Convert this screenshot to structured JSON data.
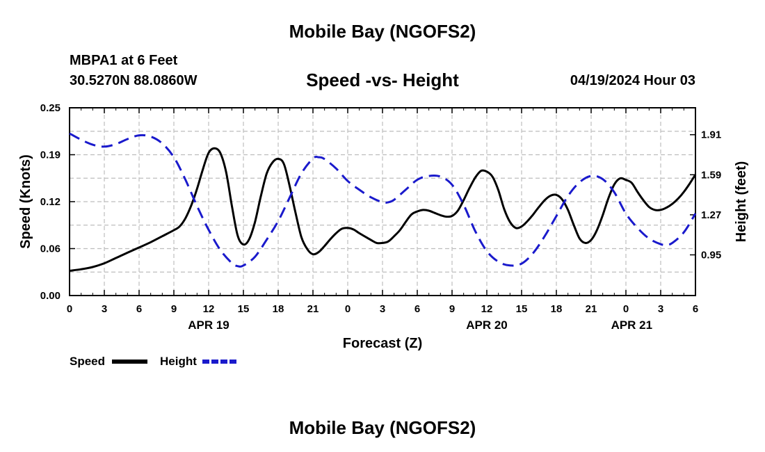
{
  "header": {
    "main_title": "Mobile Bay (NGOFS2)",
    "station_line1": "MBPA1 at 6 Feet",
    "station_line2": "30.5270N  88.0860W",
    "chart_date": "04/19/2024 Hour 03"
  },
  "footer": {
    "repeat_title": "Mobile Bay (NGOFS2)"
  },
  "colors": {
    "speed": "#000000",
    "height": "#1a1acc",
    "grid": "#bdbdbd"
  },
  "chart_data": {
    "type": "line",
    "title": "Speed -vs- Height",
    "xlabel": "Forecast (Z)",
    "ylabel_left": "Speed (Knots)",
    "ylabel_right": "Height (feet)",
    "x_range_hours": [
      0,
      54
    ],
    "ylim_left": [
      0.0,
      0.25
    ],
    "ylim_right": [
      0.625,
      2.125
    ],
    "left_ticks": [
      {
        "value": 0.0,
        "label": "0.00"
      },
      {
        "value": 0.0625,
        "label": "0.06"
      },
      {
        "value": 0.125,
        "label": "0.12"
      },
      {
        "value": 0.1875,
        "label": "0.19"
      },
      {
        "value": 0.25,
        "label": "0.25"
      }
    ],
    "right_ticks": [
      {
        "value": 0.95,
        "label": "0.95"
      },
      {
        "value": 1.27,
        "label": "1.27"
      },
      {
        "value": 1.59,
        "label": "1.59"
      },
      {
        "value": 1.91,
        "label": "1.91"
      }
    ],
    "x_ticks": [
      {
        "hour": 0,
        "label": "0"
      },
      {
        "hour": 3,
        "label": "3"
      },
      {
        "hour": 6,
        "label": "6"
      },
      {
        "hour": 9,
        "label": "9"
      },
      {
        "hour": 12,
        "label": "12"
      },
      {
        "hour": 15,
        "label": "15"
      },
      {
        "hour": 18,
        "label": "18"
      },
      {
        "hour": 21,
        "label": "21"
      },
      {
        "hour": 24,
        "label": "0"
      },
      {
        "hour": 27,
        "label": "3"
      },
      {
        "hour": 30,
        "label": "6"
      },
      {
        "hour": 33,
        "label": "9"
      },
      {
        "hour": 36,
        "label": "12"
      },
      {
        "hour": 39,
        "label": "15"
      },
      {
        "hour": 42,
        "label": "18"
      },
      {
        "hour": 45,
        "label": "21"
      },
      {
        "hour": 48,
        "label": "0"
      },
      {
        "hour": 51,
        "label": "3"
      },
      {
        "hour": 54,
        "label": "6"
      }
    ],
    "date_labels": [
      {
        "hour": 12,
        "label": "APR 19"
      },
      {
        "hour": 36,
        "label": "APR 20"
      },
      {
        "hour": 48.5,
        "label": "APR 21"
      }
    ],
    "series": [
      {
        "name": "Speed",
        "axis": "left",
        "style": "solid",
        "points": [
          [
            0,
            0.033
          ],
          [
            1,
            0.035
          ],
          [
            2,
            0.038
          ],
          [
            3,
            0.043
          ],
          [
            4,
            0.05
          ],
          [
            5,
            0.057
          ],
          [
            6,
            0.064
          ],
          [
            7,
            0.071
          ],
          [
            8,
            0.079
          ],
          [
            9,
            0.087
          ],
          [
            9.5,
            0.092
          ],
          [
            10,
            0.103
          ],
          [
            10.5,
            0.12
          ],
          [
            11,
            0.142
          ],
          [
            11.5,
            0.168
          ],
          [
            12,
            0.19
          ],
          [
            12.5,
            0.196
          ],
          [
            13,
            0.19
          ],
          [
            13.5,
            0.165
          ],
          [
            14,
            0.12
          ],
          [
            14.5,
            0.08
          ],
          [
            15,
            0.068
          ],
          [
            15.5,
            0.075
          ],
          [
            16,
            0.098
          ],
          [
            16.5,
            0.132
          ],
          [
            17,
            0.162
          ],
          [
            17.5,
            0.177
          ],
          [
            18,
            0.182
          ],
          [
            18.5,
            0.175
          ],
          [
            19,
            0.145
          ],
          [
            19.5,
            0.11
          ],
          [
            20,
            0.078
          ],
          [
            20.5,
            0.062
          ],
          [
            21,
            0.055
          ],
          [
            21.5,
            0.058
          ],
          [
            22,
            0.066
          ],
          [
            22.5,
            0.075
          ],
          [
            23,
            0.083
          ],
          [
            23.5,
            0.089
          ],
          [
            24,
            0.09
          ],
          [
            24.5,
            0.088
          ],
          [
            25,
            0.083
          ],
          [
            26,
            0.074
          ],
          [
            26.5,
            0.07
          ],
          [
            27,
            0.07
          ],
          [
            27.5,
            0.072
          ],
          [
            28,
            0.079
          ],
          [
            28.5,
            0.087
          ],
          [
            29,
            0.098
          ],
          [
            29.5,
            0.108
          ],
          [
            30,
            0.112
          ],
          [
            30.5,
            0.114
          ],
          [
            31,
            0.113
          ],
          [
            31.5,
            0.11
          ],
          [
            32,
            0.107
          ],
          [
            32.5,
            0.105
          ],
          [
            33,
            0.106
          ],
          [
            33.5,
            0.113
          ],
          [
            34,
            0.127
          ],
          [
            34.5,
            0.143
          ],
          [
            35,
            0.157
          ],
          [
            35.5,
            0.166
          ],
          [
            36,
            0.165
          ],
          [
            36.5,
            0.158
          ],
          [
            37,
            0.14
          ],
          [
            37.5,
            0.115
          ],
          [
            38,
            0.098
          ],
          [
            38.5,
            0.09
          ],
          [
            39,
            0.092
          ],
          [
            39.5,
            0.099
          ],
          [
            40,
            0.108
          ],
          [
            40.5,
            0.118
          ],
          [
            41,
            0.127
          ],
          [
            41.5,
            0.133
          ],
          [
            42,
            0.134
          ],
          [
            42.5,
            0.128
          ],
          [
            43,
            0.114
          ],
          [
            43.5,
            0.094
          ],
          [
            44,
            0.076
          ],
          [
            44.5,
            0.07
          ],
          [
            45,
            0.074
          ],
          [
            45.5,
            0.087
          ],
          [
            46,
            0.107
          ],
          [
            46.5,
            0.13
          ],
          [
            47,
            0.148
          ],
          [
            47.5,
            0.156
          ],
          [
            48,
            0.154
          ],
          [
            48.5,
            0.15
          ],
          [
            49,
            0.138
          ],
          [
            49.5,
            0.127
          ],
          [
            50,
            0.118
          ],
          [
            50.5,
            0.114
          ],
          [
            51,
            0.114
          ],
          [
            51.5,
            0.117
          ],
          [
            52,
            0.122
          ],
          [
            52.5,
            0.129
          ],
          [
            53,
            0.138
          ],
          [
            53.5,
            0.149
          ],
          [
            54,
            0.161
          ]
        ]
      },
      {
        "name": "Height",
        "axis": "right",
        "style": "dashed",
        "points": [
          [
            0,
            1.92
          ],
          [
            1,
            1.87
          ],
          [
            2,
            1.83
          ],
          [
            3,
            1.815
          ],
          [
            4,
            1.835
          ],
          [
            5,
            1.875
          ],
          [
            6,
            1.905
          ],
          [
            7,
            1.895
          ],
          [
            8,
            1.84
          ],
          [
            9,
            1.73
          ],
          [
            10,
            1.55
          ],
          [
            11,
            1.34
          ],
          [
            12,
            1.15
          ],
          [
            13,
            0.99
          ],
          [
            14,
            0.885
          ],
          [
            14.5,
            0.86
          ],
          [
            15,
            0.865
          ],
          [
            16,
            0.935
          ],
          [
            17,
            1.07
          ],
          [
            18,
            1.22
          ],
          [
            19,
            1.41
          ],
          [
            20,
            1.6
          ],
          [
            21,
            1.72
          ],
          [
            21.5,
            1.73
          ],
          [
            22,
            1.715
          ],
          [
            23,
            1.64
          ],
          [
            24,
            1.54
          ],
          [
            25,
            1.47
          ],
          [
            26,
            1.41
          ],
          [
            27,
            1.37
          ],
          [
            27.5,
            1.37
          ],
          [
            28,
            1.39
          ],
          [
            29,
            1.47
          ],
          [
            30,
            1.55
          ],
          [
            31,
            1.58
          ],
          [
            32,
            1.575
          ],
          [
            33,
            1.51
          ],
          [
            34,
            1.35
          ],
          [
            35,
            1.14
          ],
          [
            36,
            0.98
          ],
          [
            37,
            0.895
          ],
          [
            38,
            0.865
          ],
          [
            39,
            0.88
          ],
          [
            40,
            0.965
          ],
          [
            41,
            1.1
          ],
          [
            42,
            1.26
          ],
          [
            43,
            1.42
          ],
          [
            44,
            1.53
          ],
          [
            45,
            1.58
          ],
          [
            46,
            1.555
          ],
          [
            47,
            1.45
          ],
          [
            48,
            1.28
          ],
          [
            49,
            1.165
          ],
          [
            50,
            1.08
          ],
          [
            51,
            1.035
          ],
          [
            51.5,
            1.03
          ],
          [
            52,
            1.045
          ],
          [
            53,
            1.13
          ],
          [
            54,
            1.28
          ]
        ]
      }
    ],
    "legend": {
      "placement": "bottom-left",
      "entries": [
        {
          "label": "Speed",
          "style": "solid"
        },
        {
          "label": "Height",
          "style": "dashed"
        }
      ]
    }
  }
}
